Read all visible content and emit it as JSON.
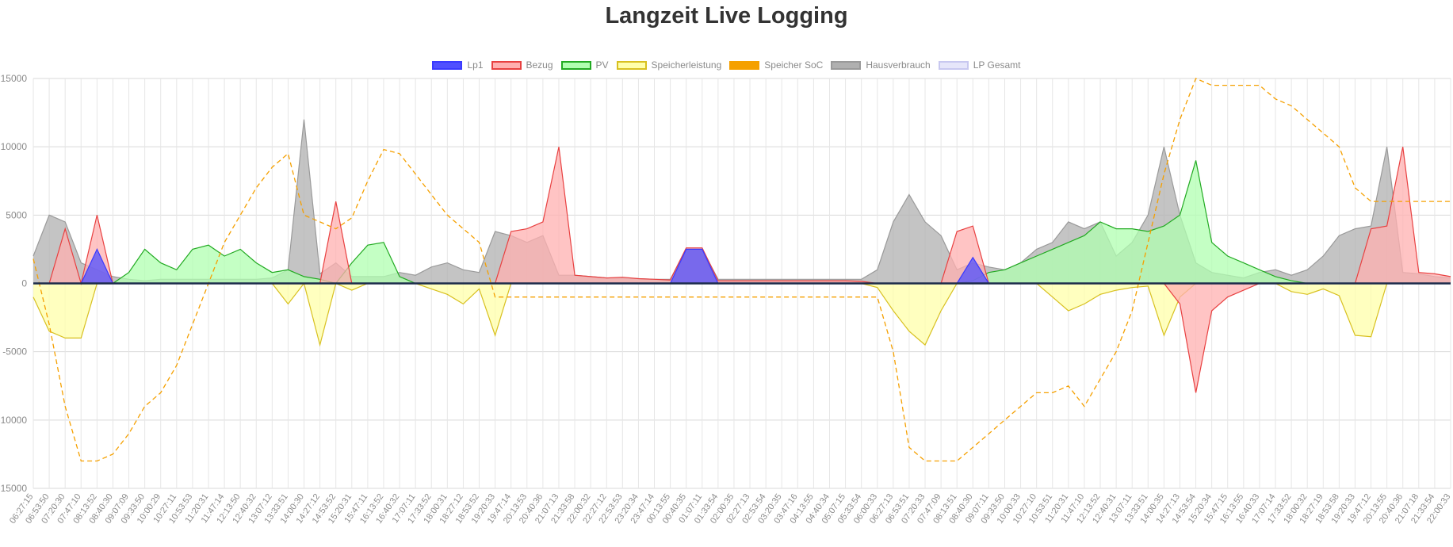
{
  "chart_data": {
    "type": "area",
    "title": "Langzeit Live Logging",
    "ylim": [
      -15000,
      15000
    ],
    "yticks": [
      15000,
      10000,
      5000,
      0,
      -5000,
      -10000,
      -15000
    ],
    "grid": true,
    "legend_position": "top-center",
    "x": [
      "06:27:15",
      "06:53:50",
      "07:20:30",
      "07:47:10",
      "08:13:52",
      "08:40:30",
      "09:07:09",
      "09:33:50",
      "10:00:29",
      "10:27:11",
      "10:53:53",
      "11:20:31",
      "11:47:14",
      "12:13:50",
      "12:40:32",
      "13:07:12",
      "13:33:51",
      "14:00:30",
      "14:27:12",
      "14:53:52",
      "15:20:31",
      "15:47:11",
      "16:13:52",
      "16:40:32",
      "17:07:11",
      "17:33:52",
      "18:00:31",
      "18:27:12",
      "18:53:52",
      "19:20:33",
      "19:47:14",
      "20:13:53",
      "20:40:36",
      "21:07:13",
      "21:33:58",
      "22:00:32",
      "22:27:12",
      "22:53:53",
      "23:20:34",
      "23:47:14",
      "00:13:55",
      "00:40:35",
      "01:07:11",
      "01:33:54",
      "02:00:35",
      "02:27:13",
      "02:53:54",
      "03:20:35",
      "03:47:16",
      "04:13:55",
      "04:40:34",
      "05:07:15",
      "05:33:54",
      "06:00:33",
      "06:27:13",
      "06:53:51",
      "07:20:33",
      "07:47:09",
      "08:13:51",
      "08:40:30",
      "09:07:11",
      "09:33:50",
      "10:00:33",
      "10:27:10",
      "10:53:51",
      "11:20:31",
      "11:47:10",
      "12:13:52",
      "12:40:31",
      "13:07:11",
      "13:33:51",
      "14:00:35",
      "14:27:13",
      "14:53:54",
      "15:20:34",
      "15:47:15",
      "16:13:55",
      "16:40:33",
      "17:07:14",
      "17:33:52",
      "18:00:32",
      "18:27:19",
      "18:53:58",
      "19:20:33",
      "19:47:12",
      "20:13:55",
      "20:40:36",
      "21:07:18",
      "21:33:54",
      "22:00:33"
    ],
    "series": [
      {
        "name": "Lp1",
        "color": "#3a3aff",
        "fill": "#5050ff",
        "values": [
          0,
          0,
          0,
          0,
          2500,
          0,
          0,
          0,
          0,
          0,
          0,
          0,
          0,
          0,
          0,
          0,
          0,
          0,
          0,
          0,
          0,
          0,
          0,
          0,
          0,
          0,
          0,
          0,
          0,
          0,
          0,
          0,
          0,
          0,
          0,
          0,
          0,
          0,
          0,
          0,
          0,
          2500,
          2500,
          0,
          0,
          0,
          0,
          0,
          0,
          0,
          0,
          0,
          0,
          0,
          0,
          0,
          0,
          0,
          0,
          1900,
          0,
          0,
          0,
          0,
          0,
          0,
          0,
          0,
          0,
          0,
          0,
          0,
          0,
          0,
          0,
          0,
          0,
          0,
          0,
          0,
          0,
          0,
          0,
          0,
          0,
          0,
          0,
          0,
          0,
          0
        ]
      },
      {
        "name": "Bezug",
        "color": "#e84040",
        "fill": "#ffb0b0",
        "values": [
          0,
          0,
          4000,
          0,
          5000,
          0,
          0,
          0,
          0,
          0,
          0,
          0,
          0,
          0,
          0,
          0,
          0,
          0,
          0,
          6000,
          0,
          0,
          0,
          0,
          0,
          0,
          0,
          0,
          0,
          0,
          3800,
          4000,
          4500,
          10000,
          600,
          500,
          400,
          450,
          350,
          300,
          250,
          2600,
          2600,
          200,
          200,
          200,
          200,
          200,
          200,
          200,
          200,
          200,
          150,
          0,
          0,
          0,
          0,
          0,
          3800,
          4200,
          0,
          0,
          0,
          0,
          0,
          0,
          0,
          0,
          0,
          0,
          0,
          0,
          -1500,
          -8000,
          -2000,
          -1000,
          -500,
          0,
          0,
          0,
          0,
          0,
          0,
          0,
          4000,
          4200,
          10000,
          800,
          700,
          500
        ]
      },
      {
        "name": "PV",
        "color": "#22aa22",
        "fill": "#b0ffb0",
        "values": [
          0,
          0,
          0,
          0,
          0,
          0,
          800,
          2500,
          1500,
          1000,
          2500,
          2800,
          2000,
          2500,
          1500,
          800,
          1000,
          500,
          300,
          0,
          1500,
          2800,
          3000,
          500,
          0,
          0,
          0,
          0,
          0,
          0,
          0,
          0,
          0,
          0,
          0,
          0,
          0,
          0,
          0,
          0,
          0,
          0,
          0,
          0,
          0,
          0,
          0,
          0,
          0,
          0,
          0,
          0,
          0,
          0,
          0,
          0,
          0,
          0,
          0,
          200,
          800,
          1000,
          1500,
          2000,
          2500,
          3000,
          3500,
          4500,
          4000,
          4000,
          3800,
          4200,
          5000,
          9000,
          3000,
          2000,
          1500,
          1000,
          500,
          200,
          0,
          0,
          0,
          0,
          0,
          0,
          0,
          0,
          0,
          0
        ]
      },
      {
        "name": "Speicherleistung",
        "color": "#d8c020",
        "fill": "#ffffaa",
        "values": [
          -1000,
          -3500,
          -4000,
          -4000,
          0,
          0,
          0,
          0,
          0,
          0,
          0,
          0,
          0,
          0,
          0,
          0,
          -1500,
          0,
          -4500,
          0,
          -500,
          0,
          0,
          0,
          0,
          -400,
          -800,
          -1500,
          -400,
          -3800,
          0,
          0,
          0,
          0,
          0,
          0,
          0,
          0,
          0,
          0,
          0,
          0,
          0,
          0,
          0,
          0,
          0,
          0,
          0,
          0,
          0,
          0,
          0,
          -300,
          -2000,
          -3500,
          -4500,
          -2000,
          0,
          0,
          0,
          0,
          0,
          0,
          -1000,
          -2000,
          -1500,
          -800,
          -500,
          -300,
          -200,
          -3800,
          -1000,
          0,
          0,
          0,
          0,
          0,
          0,
          -600,
          -800,
          -400,
          -900,
          -3800,
          -3900,
          0,
          0,
          0,
          0,
          0
        ]
      },
      {
        "name": "Speicher SoC",
        "color": "#f5a000",
        "fill": "#f5a000",
        "dashed": true,
        "values": [
          1800,
          -3000,
          -9000,
          -13000,
          -13000,
          -12500,
          -11000,
          -9000,
          -8000,
          -6000,
          -3000,
          0,
          3000,
          5000,
          7000,
          8500,
          9500,
          5000,
          4500,
          4000,
          4800,
          7500,
          9800,
          9500,
          8000,
          6500,
          5000,
          4000,
          3000,
          -1000,
          -1000,
          -1000,
          -1000,
          -1000,
          -1000,
          -1000,
          -1000,
          -1000,
          -1000,
          -1000,
          -1000,
          -1000,
          -1000,
          -1000,
          -1000,
          -1000,
          -1000,
          -1000,
          -1000,
          -1000,
          -1000,
          -1000,
          -1000,
          -1000,
          -5000,
          -12000,
          -13000,
          -13000,
          -13000,
          -12000,
          -11000,
          -10000,
          -9000,
          -8000,
          -8000,
          -7500,
          -9000,
          -7000,
          -5000,
          -2000,
          3000,
          8000,
          12000,
          15000,
          14500,
          14500,
          14500,
          14500,
          13500,
          13000,
          12000,
          11000,
          10000,
          7000,
          6000,
          6000,
          6000,
          6000,
          6000,
          6000
        ]
      },
      {
        "name": "Hausverbrauch",
        "color": "#9a9a9a",
        "fill": "#b0b0b0",
        "values": [
          2000,
          5000,
          4500,
          1500,
          1000,
          500,
          300,
          200,
          300,
          300,
          300,
          300,
          300,
          300,
          300,
          400,
          1000,
          12000,
          700,
          1500,
          500,
          500,
          500,
          800,
          600,
          1200,
          1500,
          1000,
          800,
          3800,
          3500,
          3000,
          3500,
          600,
          600,
          500,
          400,
          400,
          350,
          300,
          300,
          2500,
          2500,
          300,
          300,
          300,
          300,
          300,
          300,
          300,
          300,
          300,
          300,
          1000,
          4500,
          6500,
          4500,
          3500,
          1000,
          1500,
          1200,
          1000,
          1500,
          2500,
          3000,
          4500,
          4000,
          4500,
          2000,
          3000,
          5000,
          10000,
          5000,
          1500,
          800,
          600,
          400,
          800,
          1000,
          600,
          1000,
          2000,
          3500,
          4000,
          4200,
          10000,
          800,
          700,
          500,
          400
        ]
      },
      {
        "name": "LP Gesamt",
        "color": "#c8c8f0",
        "fill": "#e6e6fa",
        "values": [
          0,
          0,
          0,
          0,
          2500,
          0,
          0,
          0,
          0,
          0,
          0,
          0,
          0,
          0,
          0,
          0,
          0,
          0,
          0,
          0,
          0,
          0,
          0,
          0,
          0,
          0,
          0,
          0,
          0,
          0,
          0,
          0,
          0,
          0,
          0,
          0,
          0,
          0,
          0,
          0,
          0,
          2500,
          2500,
          0,
          0,
          0,
          0,
          0,
          0,
          0,
          0,
          0,
          0,
          0,
          0,
          0,
          0,
          0,
          0,
          1900,
          0,
          0,
          0,
          0,
          0,
          0,
          0,
          0,
          0,
          0,
          0,
          0,
          0,
          0,
          0,
          0,
          0,
          0,
          0,
          0,
          0,
          0,
          0,
          0,
          0,
          0,
          0,
          0,
          0,
          0
        ]
      }
    ]
  }
}
